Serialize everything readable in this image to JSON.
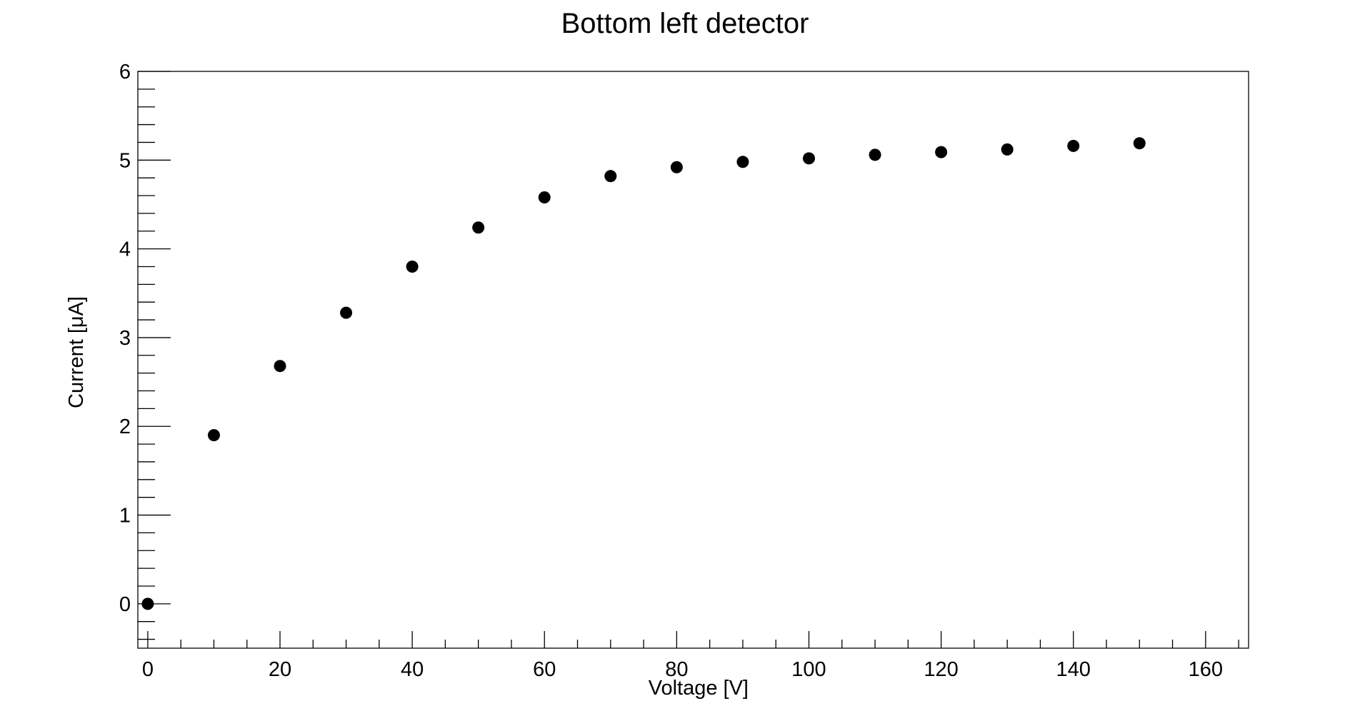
{
  "chart_data": {
    "type": "scatter",
    "title": "Bottom left detector",
    "xlabel": "Voltage [V]",
    "ylabel": "Current [μA]",
    "xlim": [
      -1.5,
      166.5
    ],
    "ylim": [
      -0.5,
      6
    ],
    "x_ticks": [
      0,
      20,
      40,
      60,
      80,
      100,
      120,
      140,
      160
    ],
    "y_ticks": [
      0,
      1,
      2,
      3,
      4,
      5,
      6
    ],
    "x_minor_step": 5,
    "y_minor_step": 0.2,
    "grid": false,
    "marker_color": "#000000",
    "series": [
      {
        "x": [
          0,
          10,
          20,
          30,
          40,
          50,
          60,
          70,
          80,
          90,
          100,
          110,
          120,
          130,
          140,
          150
        ],
        "y": [
          0.0,
          1.9,
          2.68,
          3.28,
          3.8,
          4.24,
          4.58,
          4.82,
          4.92,
          4.98,
          5.02,
          5.06,
          5.09,
          5.12,
          5.16,
          5.19
        ]
      }
    ]
  }
}
